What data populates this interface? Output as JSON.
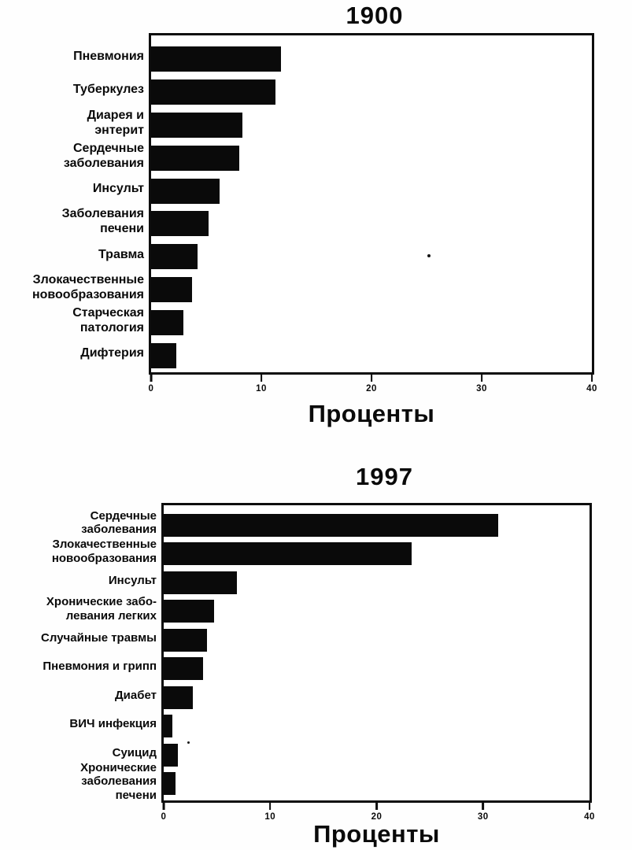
{
  "chart_data": [
    {
      "type": "bar",
      "orientation": "horizontal",
      "title": "1900",
      "xlabel": "Проценты",
      "xlim": [
        0,
        40
      ],
      "xticks": [
        "0",
        "10",
        "20",
        "30",
        "40"
      ],
      "grid": false,
      "legend": false,
      "bar_color": "#0a0a0a",
      "categories": [
        "Пневмония",
        "Туберкулез",
        "Диарея и\nэнтерит",
        "Сердечные\nзаболевания",
        "Инсульт",
        "Заболевания\nпечени",
        "Травма",
        "Злокачественные\nновообразования",
        "Старческая\nпатология",
        "Дифтерия"
      ],
      "values": [
        11.8,
        11.3,
        8.3,
        8.0,
        6.2,
        5.2,
        4.2,
        3.7,
        2.9,
        2.3
      ]
    },
    {
      "type": "bar",
      "orientation": "horizontal",
      "title": "1997",
      "xlabel": "Проценты",
      "xlim": [
        0,
        40
      ],
      "xticks": [
        "0",
        "10",
        "20",
        "30",
        "40"
      ],
      "grid": false,
      "legend": false,
      "bar_color": "#0a0a0a",
      "categories": [
        "Сердечные\nзаболевания",
        "Злокачественные\nновообразования",
        "Инсульт",
        "Хронические забо-\nлевания легких",
        "Случайные травмы",
        "Пневмония и грипп",
        "Диабет",
        "ВИЧ инфекция",
        "Суицид",
        "Хронические\nзаболевания\nпечени"
      ],
      "values": [
        31.4,
        23.3,
        6.9,
        4.7,
        4.1,
        3.7,
        2.7,
        0.8,
        1.3,
        1.1
      ]
    }
  ]
}
